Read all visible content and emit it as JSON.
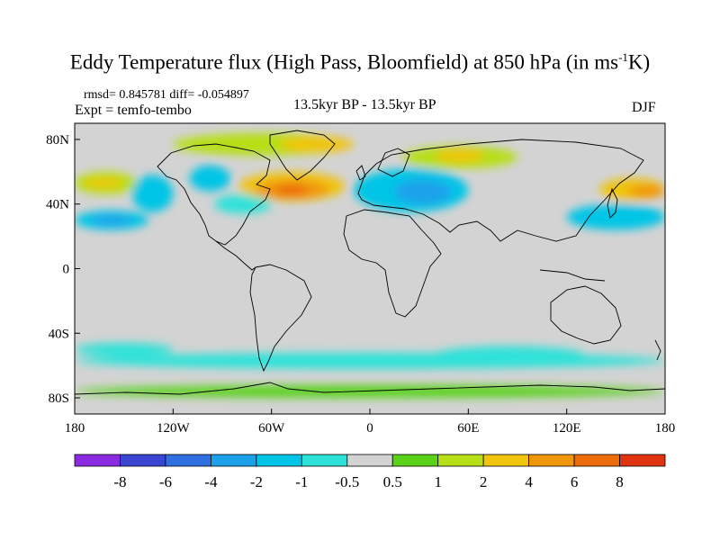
{
  "title": {
    "main": "Eddy Temperature flux (High Pass, Bloomfield) at 850 hPa (in ms",
    "unit_sup": "-1",
    "unit_tail": "K)"
  },
  "stats": {
    "rmsd_diff": "rmsd= 0.845781 diff= -0.054897",
    "expt": "Expt = temfo-tembo"
  },
  "subtitle": "13.5kyr BP - 13.5kyr BP",
  "season": "DJF",
  "chart_data": {
    "type": "heatmap",
    "projection": "cylindrical equidistant, global",
    "xlim": [
      -180,
      180
    ],
    "ylim": [
      -90,
      90
    ],
    "x_ticks": [
      {
        "value": -180,
        "label": "180"
      },
      {
        "value": -120,
        "label": "120W"
      },
      {
        "value": -60,
        "label": "60W"
      },
      {
        "value": 0,
        "label": "0"
      },
      {
        "value": 60,
        "label": "60E"
      },
      {
        "value": 120,
        "label": "120E"
      },
      {
        "value": 180,
        "label": "180"
      }
    ],
    "y_ticks": [
      {
        "value": 80,
        "label": "80N"
      },
      {
        "value": 40,
        "label": "40N"
      },
      {
        "value": 0,
        "label": "0"
      },
      {
        "value": -40,
        "label": "40S"
      },
      {
        "value": -80,
        "label": "80S"
      }
    ],
    "background_color": "#d3d3d3",
    "colorbar": {
      "boundaries": [
        "-8",
        "-6",
        "-4",
        "-2",
        "-1",
        "-0.5",
        "0.5",
        "1",
        "2",
        "4",
        "6",
        "8"
      ],
      "colors": [
        "#8a2be2",
        "#3a46d2",
        "#2f6fe0",
        "#1aa1ea",
        "#00c5e6",
        "#2ee2d9",
        "#d3d3d3",
        "#5ad21a",
        "#b6df18",
        "#f0c40f",
        "#f0960a",
        "#ec6c0c",
        "#e03410"
      ]
    },
    "regions": [
      {
        "lon": [
          -180,
          -142
        ],
        "lat": [
          46,
          60
        ],
        "class": "1 to 2",
        "color": "#b6df18"
      },
      {
        "lon": [
          -175,
          -150
        ],
        "lat": [
          50,
          56
        ],
        "class": "2 to 4",
        "color": "#f0c40f"
      },
      {
        "lon": [
          -180,
          -135
        ],
        "lat": [
          24,
          36
        ],
        "class": "-2 to -1",
        "color": "#00c5e6"
      },
      {
        "lon": [
          -170,
          -145
        ],
        "lat": [
          27,
          33
        ],
        "class": "-4 to -2",
        "color": "#1aa1ea"
      },
      {
        "lon": [
          -145,
          -120
        ],
        "lat": [
          35,
          58
        ],
        "class": "-2 to -1",
        "color": "#00c5e6"
      },
      {
        "lon": [
          -95,
          -60
        ],
        "lat": [
          34,
          46
        ],
        "class": "-1 to -0.5",
        "color": "#2ee2d9"
      },
      {
        "lon": [
          -110,
          -85
        ],
        "lat": [
          48,
          64
        ],
        "class": "-2 to -1",
        "color": "#00c5e6"
      },
      {
        "lon": [
          -120,
          -10
        ],
        "lat": [
          70,
          84
        ],
        "class": "1 to 2",
        "color": "#b6df18"
      },
      {
        "lon": [
          -55,
          -10
        ],
        "lat": [
          72,
          82
        ],
        "class": "2 to 4",
        "color": "#f0c40f"
      },
      {
        "lon": [
          -80,
          -15
        ],
        "lat": [
          42,
          60
        ],
        "class": "2 to 4",
        "color": "#f0c40f"
      },
      {
        "lon": [
          -70,
          -25
        ],
        "lat": [
          43,
          55
        ],
        "class": "4 to 6",
        "color": "#f0960a"
      },
      {
        "lon": [
          -58,
          -38
        ],
        "lat": [
          45,
          52
        ],
        "class": "6 to 8",
        "color": "#ec6c0c"
      },
      {
        "lon": [
          -10,
          60
        ],
        "lat": [
          35,
          62
        ],
        "class": "-2 to -1",
        "color": "#00c5e6"
      },
      {
        "lon": [
          15,
          50
        ],
        "lat": [
          40,
          55
        ],
        "class": "-4 to -2",
        "color": "#1aa1ea"
      },
      {
        "lon": [
          20,
          90
        ],
        "lat": [
          62,
          76
        ],
        "class": "1 to 2",
        "color": "#b6df18"
      },
      {
        "lon": [
          40,
          70
        ],
        "lat": [
          66,
          74
        ],
        "class": "2 to 4",
        "color": "#f0c40f"
      },
      {
        "lon": [
          120,
          180
        ],
        "lat": [
          24,
          40
        ],
        "class": "-2 to -1",
        "color": "#00c5e6"
      },
      {
        "lon": [
          140,
          180
        ],
        "lat": [
          42,
          56
        ],
        "class": "2 to 4",
        "color": "#f0c40f"
      },
      {
        "lon": [
          158,
          180
        ],
        "lat": [
          44,
          52
        ],
        "class": "4 to 6",
        "color": "#f0960a"
      },
      {
        "lon": [
          -180,
          180
        ],
        "lat": [
          -62,
          -52
        ],
        "class": "-1 to -0.5",
        "color": "#2ee2d9"
      },
      {
        "lon": [
          -180,
          -120
        ],
        "lat": [
          -54,
          -46
        ],
        "class": "-1 to -0.5",
        "color": "#2ee2d9"
      },
      {
        "lon": [
          40,
          130
        ],
        "lat": [
          -58,
          -48
        ],
        "class": "-1 to -0.5",
        "color": "#2ee2d9"
      },
      {
        "lon": [
          -180,
          180
        ],
        "lat": [
          -80,
          -72
        ],
        "class": "0.5 to 1",
        "color": "#5ad21a"
      }
    ]
  }
}
